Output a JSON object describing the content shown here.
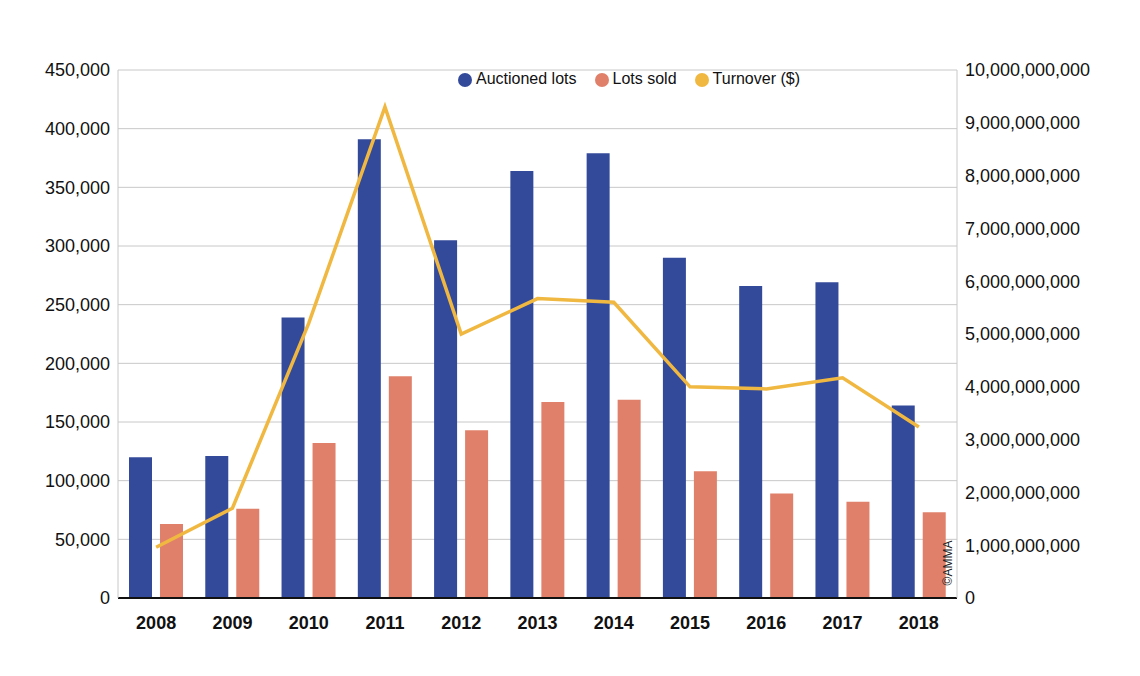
{
  "chart_data": {
    "type": "bar",
    "categories": [
      "2008",
      "2009",
      "2010",
      "2011",
      "2012",
      "2013",
      "2014",
      "2015",
      "2016",
      "2017",
      "2018"
    ],
    "series": [
      {
        "name": "Auctioned lots",
        "type": "bar",
        "color": "#334a9a",
        "values": [
          120000,
          121000,
          239000,
          391000,
          305000,
          364000,
          379000,
          290000,
          266000,
          269000,
          164000
        ]
      },
      {
        "name": "Lots sold",
        "type": "bar",
        "color": "#e0806a",
        "values": [
          63000,
          76000,
          132000,
          189000,
          143000,
          167000,
          169000,
          108000,
          89000,
          82000,
          73000
        ]
      },
      {
        "name": "Turnover ($)",
        "type": "line",
        "axis": "y2",
        "color": "#f0b840",
        "values": [
          960000000,
          1700000000,
          5200000000,
          9300000000,
          5000000000,
          5670000000,
          5600000000,
          4000000000,
          3960000000,
          4170000000,
          3240000000
        ]
      }
    ],
    "ylim": [
      0,
      450000
    ],
    "yticks": [
      0,
      {
        "value": 50000,
        "label": "50,000"
      },
      {
        "value": 100000,
        "label": "100,000"
      },
      {
        "value": 150000,
        "label": "150,000"
      },
      {
        "value": 200000,
        "label": "200,000"
      },
      {
        "value": 250000,
        "label": "250,000"
      },
      {
        "value": 300000,
        "label": "300,000"
      },
      {
        "value": 350000,
        "label": "350,000"
      },
      {
        "value": 400000,
        "label": "400,000"
      },
      {
        "value": 450000,
        "label": "450,000"
      }
    ],
    "y2lim": [
      0,
      10000000000
    ],
    "y2ticks": [
      0,
      {
        "value": 1000000000,
        "label": "1,000,000,000"
      },
      {
        "value": 2000000000,
        "label": "2,000,000,000"
      },
      {
        "value": 3000000000,
        "label": "3,000,000,000"
      },
      {
        "value": 4000000000,
        "label": "4,000,000,000"
      },
      {
        "value": 5000000000,
        "label": "5,000,000,000"
      },
      {
        "value": 6000000000,
        "label": "6,000,000,000"
      },
      {
        "value": 7000000000,
        "label": "7,000,000,000"
      },
      {
        "value": 8000000000,
        "label": "8,000,000,000"
      },
      {
        "value": 9000000000,
        "label": "9,000,000,000"
      },
      {
        "value": 10000000000,
        "label": "10,000,000,000"
      }
    ],
    "grid": true,
    "legend": "upper right",
    "annotations": [
      "©AMMA"
    ]
  }
}
